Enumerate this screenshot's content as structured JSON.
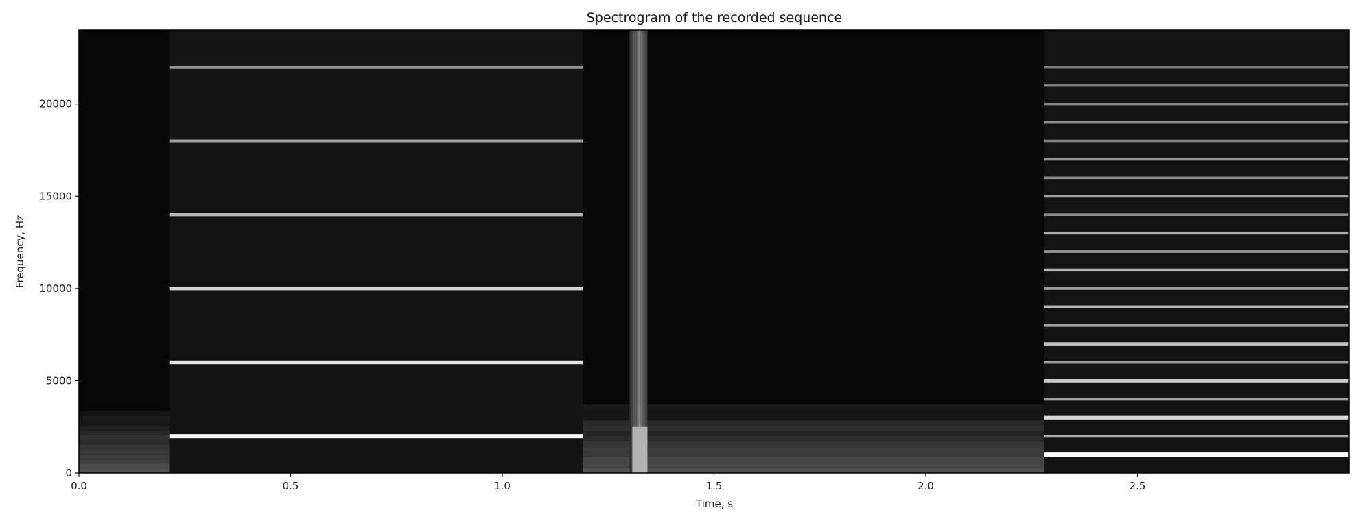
{
  "chart_data": {
    "type": "heatmap",
    "title": "Spectrogram of the recorded sequence",
    "xlabel": "Time, s",
    "ylabel": "Frequency, Hz",
    "xlim": [
      0.0,
      3.0
    ],
    "ylim": [
      0,
      24000
    ],
    "xticks": [
      0.0,
      0.5,
      1.0,
      1.5,
      2.0,
      2.5
    ],
    "xtick_labels": [
      "0.0",
      "0.5",
      "1.0",
      "1.5",
      "2.0",
      "2.5"
    ],
    "yticks": [
      0,
      5000,
      10000,
      15000,
      20000
    ],
    "ytick_labels": [
      "0",
      "5000",
      "10000",
      "15000",
      "20000"
    ],
    "colormap": "gray",
    "background_color": "#050505",
    "grid": false,
    "segments": [
      {
        "t_start": 0.0,
        "t_end": 0.215,
        "kind": "noise",
        "noise_max_hz": 3600,
        "tones": []
      },
      {
        "t_start": 0.215,
        "t_end": 1.19,
        "kind": "tones",
        "noise_max_hz": 0,
        "tones": [
          {
            "freq": 2000,
            "intensity": 1.0
          },
          {
            "freq": 6000,
            "intensity": 0.85
          },
          {
            "freq": 10000,
            "intensity": 0.78
          },
          {
            "freq": 14000,
            "intensity": 0.6
          },
          {
            "freq": 18000,
            "intensity": 0.5
          },
          {
            "freq": 22000,
            "intensity": 0.45
          }
        ]
      },
      {
        "t_start": 1.19,
        "t_end": 2.28,
        "kind": "impulse-then-noise",
        "impulse_t": 1.32,
        "noise_max_hz": 4000,
        "tones": []
      },
      {
        "t_start": 2.28,
        "t_end": 3.0,
        "kind": "tones",
        "noise_max_hz": 0,
        "tones": [
          {
            "freq": 1000,
            "intensity": 1.0
          },
          {
            "freq": 2000,
            "intensity": 0.55
          },
          {
            "freq": 3000,
            "intensity": 0.8
          },
          {
            "freq": 4000,
            "intensity": 0.5
          },
          {
            "freq": 5000,
            "intensity": 0.72
          },
          {
            "freq": 6000,
            "intensity": 0.48
          },
          {
            "freq": 7000,
            "intensity": 0.68
          },
          {
            "freq": 8000,
            "intensity": 0.5
          },
          {
            "freq": 9000,
            "intensity": 0.62
          },
          {
            "freq": 10000,
            "intensity": 0.48
          },
          {
            "freq": 11000,
            "intensity": 0.6
          },
          {
            "freq": 12000,
            "intensity": 0.45
          },
          {
            "freq": 13000,
            "intensity": 0.55
          },
          {
            "freq": 14000,
            "intensity": 0.42
          },
          {
            "freq": 15000,
            "intensity": 0.5
          },
          {
            "freq": 16000,
            "intensity": 0.4
          },
          {
            "freq": 17000,
            "intensity": 0.45
          },
          {
            "freq": 18000,
            "intensity": 0.38
          },
          {
            "freq": 19000,
            "intensity": 0.42
          },
          {
            "freq": 20000,
            "intensity": 0.36
          },
          {
            "freq": 21000,
            "intensity": 0.34
          },
          {
            "freq": 22000,
            "intensity": 0.32
          }
        ]
      }
    ]
  }
}
